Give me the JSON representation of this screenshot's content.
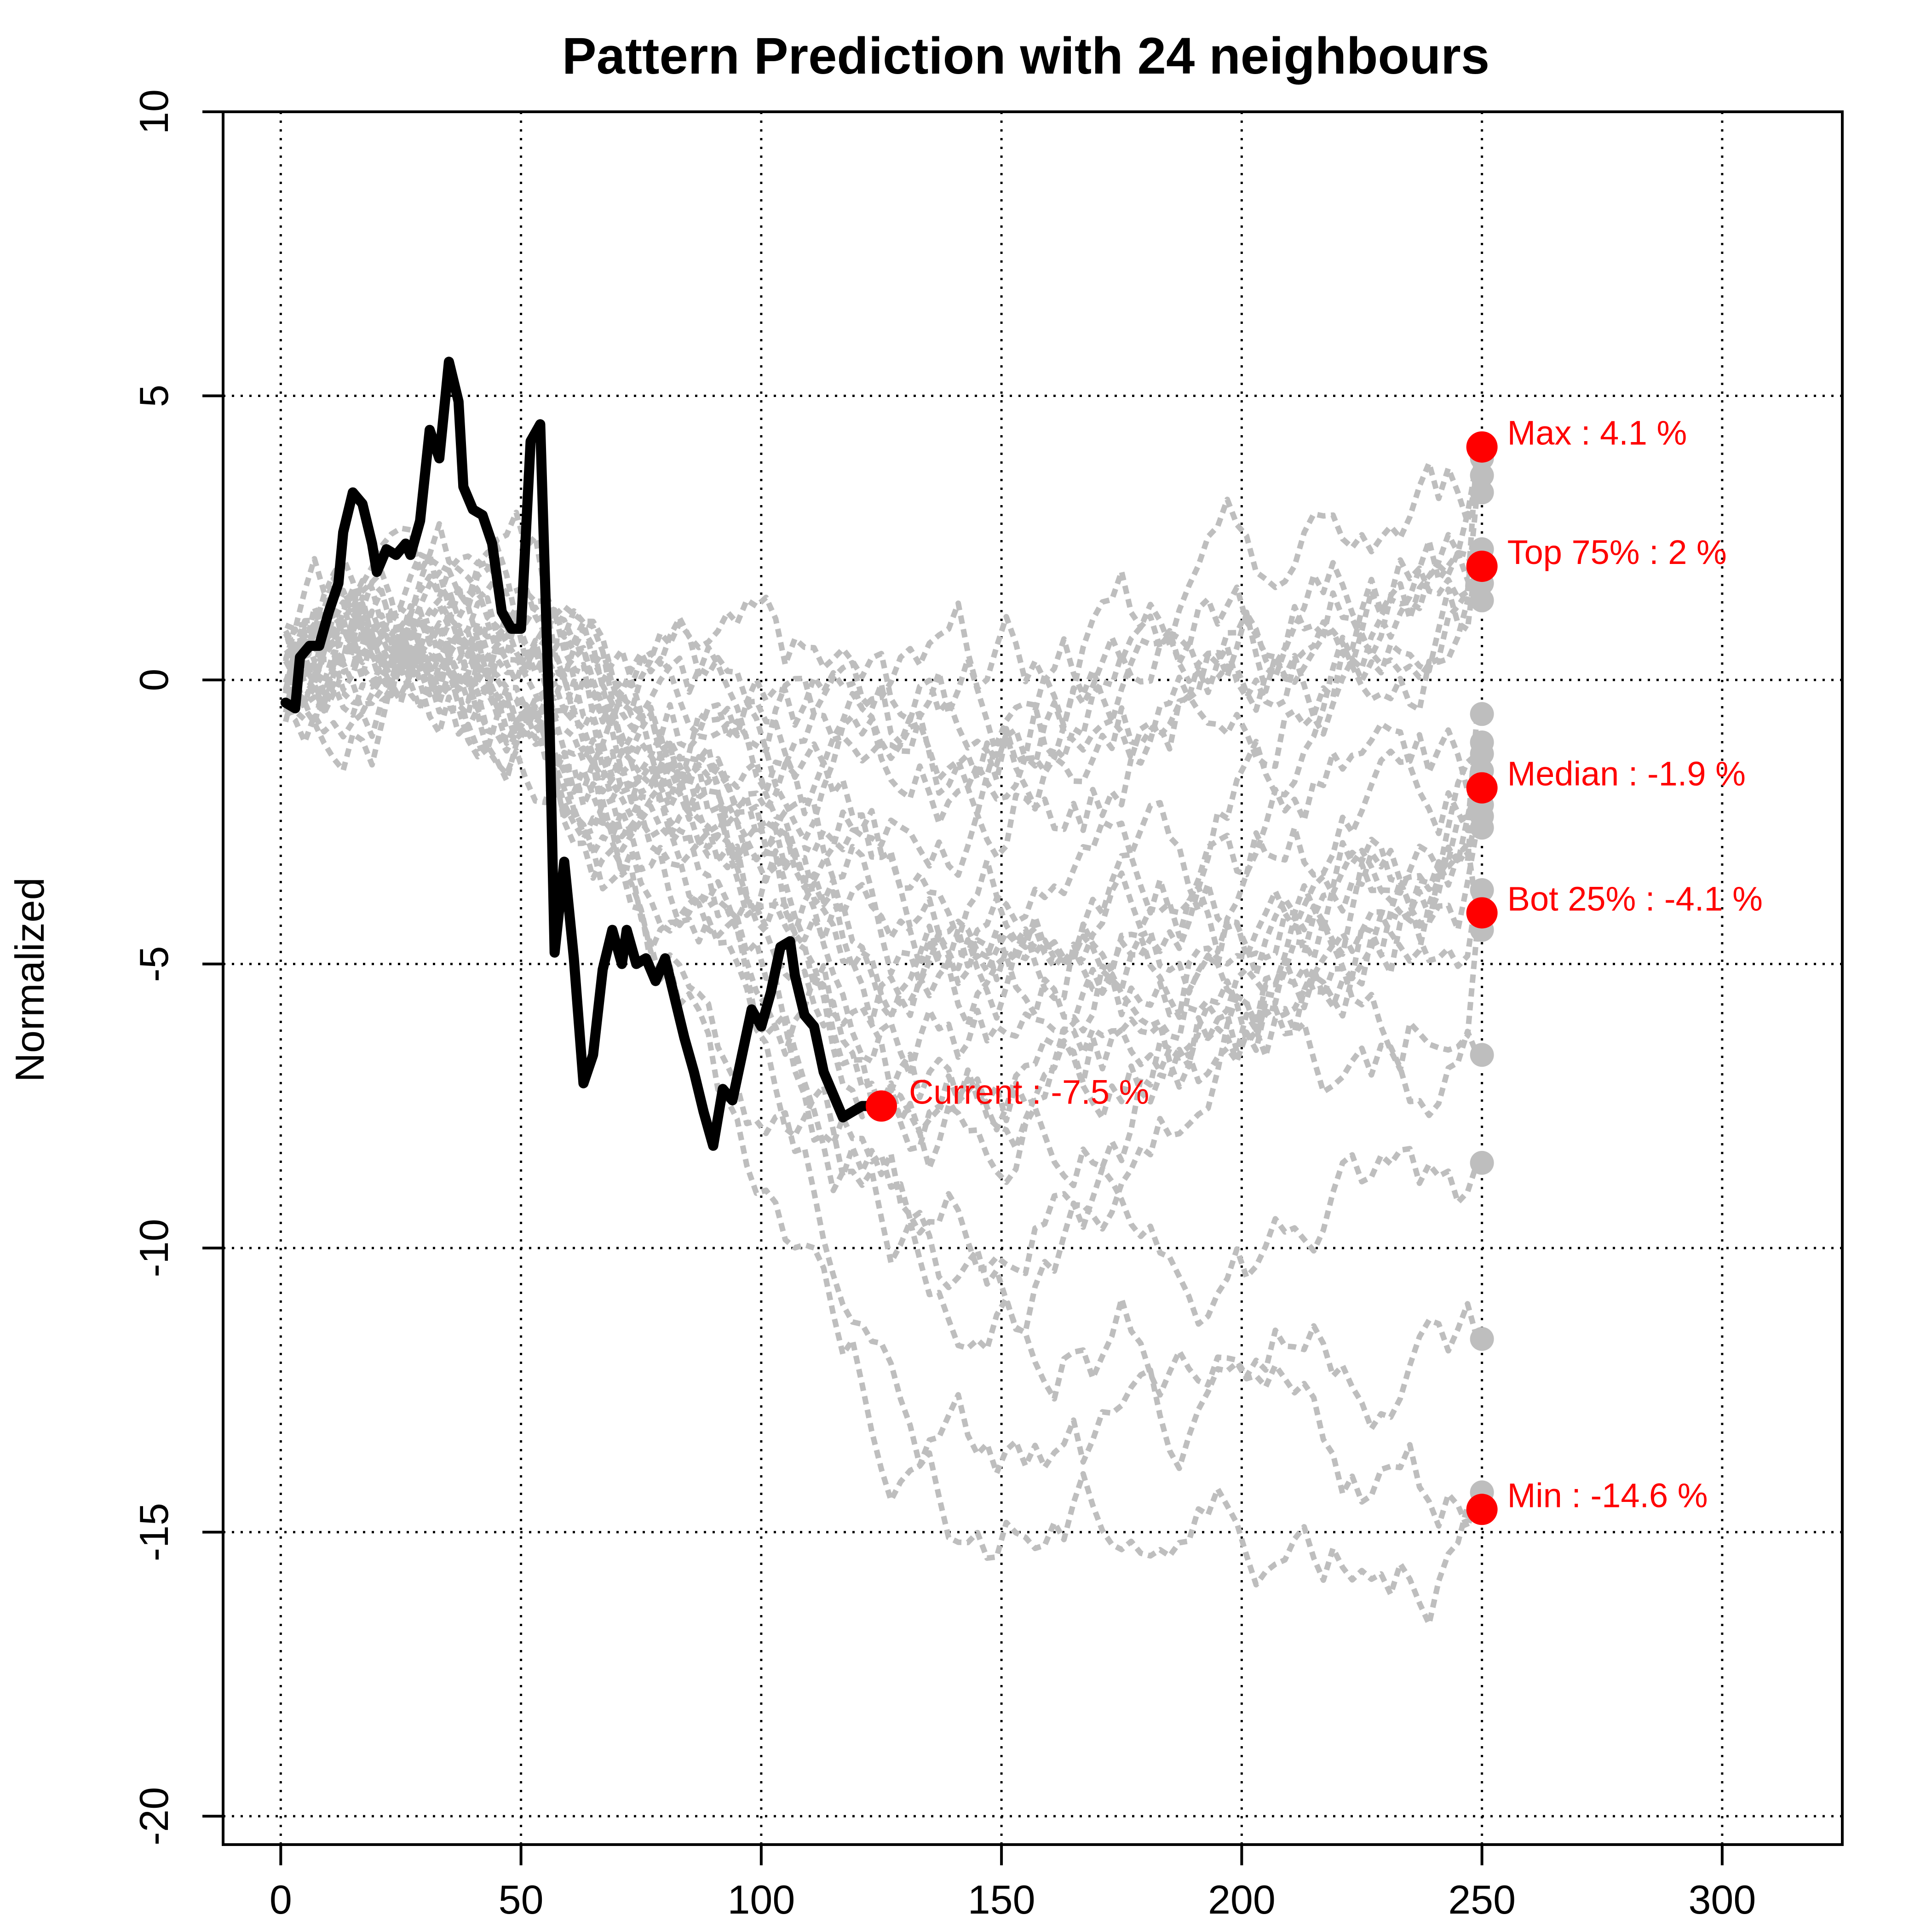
{
  "chart_data": {
    "type": "line",
    "title": "Pattern Prediction with 24 neighbours",
    "xlabel": "",
    "ylabel": "Normalized",
    "xlim": [
      -12,
      325
    ],
    "ylim": [
      -20.5,
      10
    ],
    "x_ticks": [
      0,
      50,
      100,
      150,
      200,
      250,
      300
    ],
    "y_ticks": [
      10,
      5,
      0,
      -5,
      -10,
      -15,
      -20
    ],
    "grid": true,
    "colors": {
      "current": "#000000",
      "neighbours": "#bebebe",
      "markers": "#ff0000",
      "end_points": "#bebebe"
    },
    "current_series": {
      "name": "Current",
      "x": [
        1,
        3,
        4,
        6,
        8,
        10,
        12,
        13,
        15,
        17,
        19,
        20,
        22,
        24,
        26,
        27,
        29,
        31,
        33,
        35,
        37,
        38,
        40,
        42,
        44,
        46,
        48,
        50,
        52,
        54,
        56,
        57,
        59,
        61,
        63,
        65,
        67,
        69,
        71,
        72,
        74,
        76,
        78,
        80,
        82,
        84,
        86,
        88,
        90,
        92,
        94,
        96,
        98,
        100,
        102,
        104,
        106,
        107,
        109,
        111,
        113,
        115,
        117,
        119,
        121,
        122
      ],
      "y": [
        -0.4,
        -0.5,
        0.4,
        0.6,
        0.6,
        1.2,
        1.7,
        2.6,
        3.3,
        3.1,
        2.4,
        1.9,
        2.3,
        2.2,
        2.4,
        2.2,
        2.8,
        4.4,
        3.9,
        5.6,
        4.9,
        3.4,
        3.0,
        2.9,
        2.4,
        1.2,
        0.9,
        0.9,
        4.2,
        4.5,
        -1.0,
        -4.8,
        -3.2,
        -4.9,
        -7.1,
        -6.6,
        -5.1,
        -4.4,
        -5.0,
        -4.4,
        -5.0,
        -4.9,
        -5.3,
        -4.9,
        -5.6,
        -6.3,
        -6.9,
        -7.6,
        -8.2,
        -7.2,
        -7.4,
        -6.6,
        -5.8,
        -6.1,
        -5.5,
        -4.7,
        -4.6,
        -5.2,
        -5.9,
        -6.1,
        -6.9,
        -7.3,
        -7.7,
        -7.6,
        -7.5,
        -7.5
      ]
    },
    "current_point": {
      "x": 125,
      "y": -7.5,
      "label": "Current : -7.5 %"
    },
    "neighbour_end_x": 250,
    "neighbour_end_values": [
      4.1,
      3.9,
      3.3,
      2.3,
      2.0,
      1.7,
      1.4,
      -0.6,
      -1.3,
      -1.6,
      -1.9,
      -2.2,
      -2.4,
      -2.6,
      -3.7,
      -4.1,
      -4.4,
      -6.6,
      -8.5,
      -11.6,
      -14.3,
      -14.6,
      3.6,
      -1.1
    ],
    "summary_points": [
      {
        "name": "Max",
        "y": 4.1,
        "label": "Max : 4.1 %"
      },
      {
        "name": "Top 75%",
        "y": 2.0,
        "label": "Top 75% : 2 %"
      },
      {
        "name": "Median",
        "y": -1.9,
        "label": "Median : -1.9 %"
      },
      {
        "name": "Bot 25%",
        "y": -4.1,
        "label": "Bot 25% : -4.1 %"
      },
      {
        "name": "Min",
        "y": -14.6,
        "label": "Min : -14.6 %"
      }
    ],
    "neighbour_count": 24
  }
}
